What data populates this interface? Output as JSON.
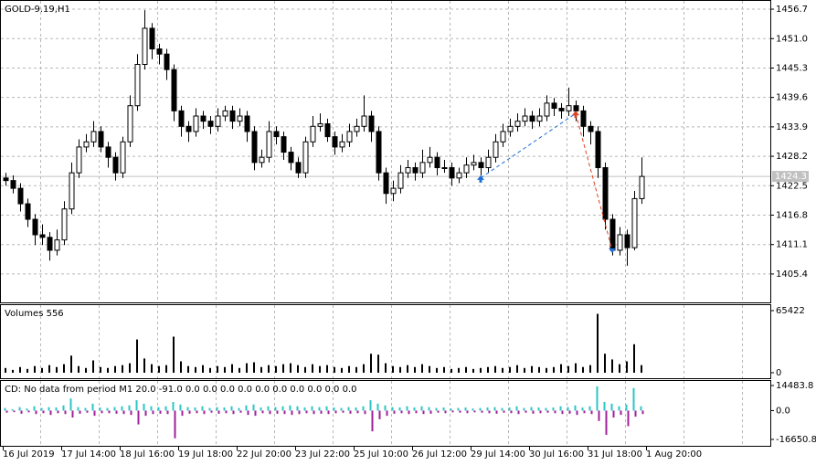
{
  "chart_data": [
    {
      "type": "candlestick",
      "title": "GOLD-9.19,H1",
      "x_labels": [
        "16 Jul 2019",
        "17 Jul 14:00",
        "18 Jul 16:00",
        "19 Jul 18:00",
        "22 Jul 20:00",
        "23 Jul 22:00",
        "25 Jul 10:00",
        "26 Jul 12:00",
        "29 Jul 14:00",
        "30 Jul 16:00",
        "31 Jul 18:00",
        "1 Aug 20:00"
      ],
      "ohlc": [
        [
          1424,
          1425,
          1422.5,
          1423.5
        ],
        [
          1423.5,
          1424.5,
          1421,
          1422
        ],
        [
          1422,
          1423,
          1417.5,
          1419
        ],
        [
          1419,
          1420,
          1414.5,
          1416
        ],
        [
          1416,
          1417,
          1411,
          1413
        ],
        [
          1413,
          1415,
          1411,
          1412.5
        ],
        [
          1412.5,
          1413.5,
          1408,
          1410
        ],
        [
          1410,
          1414,
          1409,
          1412
        ],
        [
          1412,
          1419.5,
          1411,
          1418
        ],
        [
          1418,
          1427,
          1417,
          1425
        ],
        [
          1425,
          1431.5,
          1424,
          1430
        ],
        [
          1430,
          1432.5,
          1429,
          1431
        ],
        [
          1431,
          1435,
          1430,
          1433
        ],
        [
          1433,
          1434,
          1429,
          1430
        ],
        [
          1430,
          1431,
          1426,
          1428
        ],
        [
          1428,
          1429,
          1423.5,
          1425
        ],
        [
          1425,
          1432,
          1424,
          1431
        ],
        [
          1431,
          1440,
          1430,
          1438
        ],
        [
          1438,
          1448,
          1437,
          1446
        ],
        [
          1446,
          1456.5,
          1445,
          1453
        ],
        [
          1453,
          1454,
          1447,
          1449
        ],
        [
          1449,
          1450,
          1446,
          1448
        ],
        [
          1448,
          1449,
          1443,
          1445
        ],
        [
          1445,
          1446,
          1435,
          1437
        ],
        [
          1437,
          1438,
          1432,
          1434
        ],
        [
          1434,
          1435,
          1431,
          1433
        ],
        [
          1433,
          1437.5,
          1432,
          1436
        ],
        [
          1436,
          1437,
          1433.5,
          1435
        ],
        [
          1435,
          1436,
          1432.5,
          1434
        ],
        [
          1434,
          1437.5,
          1433,
          1436
        ],
        [
          1436,
          1438,
          1435,
          1437
        ],
        [
          1437,
          1438,
          1433.5,
          1435
        ],
        [
          1435,
          1437.5,
          1434,
          1436
        ],
        [
          1436,
          1437,
          1431,
          1433
        ],
        [
          1433,
          1434,
          1425.5,
          1427
        ],
        [
          1427,
          1429.5,
          1426,
          1428
        ],
        [
          1428,
          1435,
          1427,
          1433
        ],
        [
          1433,
          1434,
          1430.5,
          1432
        ],
        [
          1432,
          1433,
          1427.5,
          1429
        ],
        [
          1429,
          1430,
          1425.5,
          1427
        ],
        [
          1427,
          1428,
          1424,
          1425
        ],
        [
          1425,
          1432,
          1424,
          1431
        ],
        [
          1431,
          1436,
          1430,
          1434
        ],
        [
          1434,
          1436.5,
          1433,
          1434.5
        ],
        [
          1434.5,
          1435.5,
          1431,
          1432
        ],
        [
          1432,
          1433,
          1428.5,
          1430
        ],
        [
          1430,
          1432.5,
          1429,
          1431
        ],
        [
          1431,
          1434.5,
          1430,
          1433
        ],
        [
          1433,
          1435.5,
          1432,
          1434
        ],
        [
          1434,
          1440,
          1433,
          1436
        ],
        [
          1436,
          1437,
          1431,
          1433
        ],
        [
          1433,
          1434,
          1423.5,
          1425
        ],
        [
          1425,
          1426,
          1419,
          1421
        ],
        [
          1421,
          1423.5,
          1419.5,
          1422
        ],
        [
          1422,
          1426.5,
          1421,
          1425
        ],
        [
          1425,
          1427.5,
          1424,
          1426
        ],
        [
          1426,
          1427,
          1423.5,
          1425
        ],
        [
          1425,
          1429.5,
          1424,
          1427
        ],
        [
          1427,
          1430,
          1426,
          1428
        ],
        [
          1428,
          1429,
          1424.5,
          1426
        ],
        [
          1426,
          1427.5,
          1425,
          1426
        ],
        [
          1426,
          1427,
          1422.5,
          1424
        ],
        [
          1424,
          1426,
          1423,
          1425
        ],
        [
          1425,
          1428,
          1424,
          1426.5
        ],
        [
          1426.5,
          1428.5,
          1425.5,
          1427
        ],
        [
          1427,
          1428,
          1424.5,
          1426
        ],
        [
          1426,
          1429.5,
          1425,
          1428
        ],
        [
          1428,
          1432.5,
          1427,
          1431
        ],
        [
          1431,
          1434.5,
          1430,
          1433
        ],
        [
          1433,
          1435.5,
          1432,
          1434
        ],
        [
          1434,
          1436.5,
          1433,
          1435
        ],
        [
          1435,
          1437.5,
          1434,
          1436
        ],
        [
          1436,
          1437,
          1433.5,
          1435
        ],
        [
          1435,
          1437.5,
          1434,
          1436
        ],
        [
          1436,
          1440,
          1435,
          1438.5
        ],
        [
          1438.5,
          1439.5,
          1436,
          1437.5
        ],
        [
          1437.5,
          1438.5,
          1435.5,
          1437
        ],
        [
          1437,
          1441.5,
          1436,
          1438
        ],
        [
          1438,
          1439,
          1435,
          1437
        ],
        [
          1437,
          1438,
          1432,
          1434
        ],
        [
          1434,
          1435,
          1430.5,
          1433
        ],
        [
          1433,
          1434,
          1424,
          1426
        ],
        [
          1426,
          1427,
          1414,
          1416
        ],
        [
          1416,
          1417,
          1409,
          1410
        ],
        [
          1410,
          1414.5,
          1409,
          1413
        ],
        [
          1413,
          1414,
          1407,
          1410.5
        ],
        [
          1410.5,
          1421.5,
          1410,
          1420
        ],
        [
          1420,
          1428,
          1419,
          1424.3
        ]
      ],
      "ylim": [
        1399.9,
        1458.3
      ],
      "yticks": [
        1456.7,
        {
          "value": 1451.0,
          "label": "1451.0"
        },
        1445.3,
        1439.6,
        1433.9,
        1428.2,
        1422.5,
        1416.8,
        1411.1,
        1405.4
      ],
      "last_price": 1424.3,
      "grid": true,
      "bull_color": "#ffffff",
      "bear_color": "#000000",
      "trades": [
        {
          "open_index": 65,
          "open_price": 1424,
          "close_index": 78,
          "close_price": 1436.5,
          "color": "#1e6fd9"
        },
        {
          "open_index": 78,
          "open_price": 1436.5,
          "close_index": 83,
          "close_price": 1410,
          "color": "#e04020"
        }
      ]
    },
    {
      "type": "bar",
      "title": "Volumes 556",
      "color": "#000000",
      "values": [
        5000,
        3000,
        6000,
        4000,
        7000,
        5000,
        8000,
        6000,
        9000,
        18000,
        7000,
        5000,
        13000,
        6000,
        5000,
        7000,
        8000,
        10000,
        35000,
        15000,
        9000,
        7000,
        8000,
        38000,
        12000,
        7000,
        6000,
        8000,
        5000,
        7000,
        6000,
        9000,
        5000,
        10000,
        11000,
        6000,
        8000,
        7000,
        9000,
        10000,
        8000,
        6000,
        9000,
        7000,
        8000,
        6000,
        5000,
        7000,
        6000,
        9000,
        20000,
        19000,
        10000,
        7000,
        6000,
        8000,
        6000,
        9000,
        7000,
        5000,
        6000,
        4000,
        5000,
        6000,
        4000,
        5000,
        6000,
        7000,
        5000,
        6000,
        8000,
        5000,
        7000,
        6000,
        5000,
        6000,
        9000,
        7000,
        10000,
        6000,
        8000,
        62000,
        20000,
        14000,
        9000,
        12000,
        30000,
        8000
      ],
      "ylim": [
        -5770,
        71195
      ],
      "yticks": [
        65422,
        0
      ]
    },
    {
      "type": "bar",
      "title": "CD: No data from period M1  20.0 -91.0 0.0 0.0 0.0 0.0 0.0 0.0 0.0 0.0 0.0 0.0",
      "series": [
        {
          "color": "#2ec4c4",
          "values": [
            1500,
            800,
            2000,
            1200,
            2500,
            1500,
            2000,
            1800,
            3000,
            7000,
            2000,
            1500,
            4000,
            1800,
            1500,
            2000,
            2500,
            3000,
            6000,
            4000,
            2500,
            2000,
            2500,
            5000,
            3500,
            2000,
            1800,
            2500,
            1500,
            2000,
            1800,
            2500,
            1500,
            3000,
            3500,
            1800,
            2500,
            2000,
            2500,
            3000,
            2500,
            1800,
            2500,
            2000,
            2500,
            1800,
            1500,
            2000,
            1800,
            2500,
            6000,
            4000,
            3000,
            2000,
            1800,
            2500,
            1800,
            2500,
            2000,
            1500,
            1800,
            1200,
            1500,
            1800,
            1200,
            1500,
            1800,
            2000,
            1500,
            1800,
            2500,
            1500,
            2000,
            1800,
            1500,
            1800,
            2500,
            2000,
            3000,
            1800,
            2500,
            14000,
            5000,
            4000,
            2500,
            3500,
            13000,
            2500
          ]
        },
        {
          "color": "#a0209a",
          "values": [
            -1200,
            -900,
            -1800,
            -1000,
            -2000,
            -1500,
            -2500,
            -1500,
            -2000,
            -4000,
            -1800,
            -1200,
            -3000,
            -1500,
            -1500,
            -1800,
            -2000,
            -2500,
            -8000,
            -3000,
            -2000,
            -1800,
            -2000,
            -16000,
            -3000,
            -1800,
            -1500,
            -2000,
            -1200,
            -1800,
            -1500,
            -2000,
            -1200,
            -2500,
            -3000,
            -1500,
            -2000,
            -1800,
            -2000,
            -2500,
            -2000,
            -1500,
            -2000,
            -1800,
            -2000,
            -1500,
            -1200,
            -1800,
            -1500,
            -2000,
            -12000,
            -5000,
            -3000,
            -1800,
            -1500,
            -2000,
            -1500,
            -2000,
            -1800,
            -1200,
            -1500,
            -1000,
            -1200,
            -1500,
            -1000,
            -1200,
            -1500,
            -1800,
            -1200,
            -1500,
            -2000,
            -1200,
            -1800,
            -1500,
            -1200,
            -1500,
            -2000,
            -1800,
            -2500,
            -1500,
            -2000,
            -6000,
            -14000,
            -4000,
            -2500,
            -9000,
            -3500,
            -2000
          ]
        }
      ],
      "ylim": [
        -20360,
        17130
      ],
      "yticks": [
        14483.8,
        {
          "value": 0,
          "label": "0.0"
        },
        -16650.8
      ]
    }
  ]
}
